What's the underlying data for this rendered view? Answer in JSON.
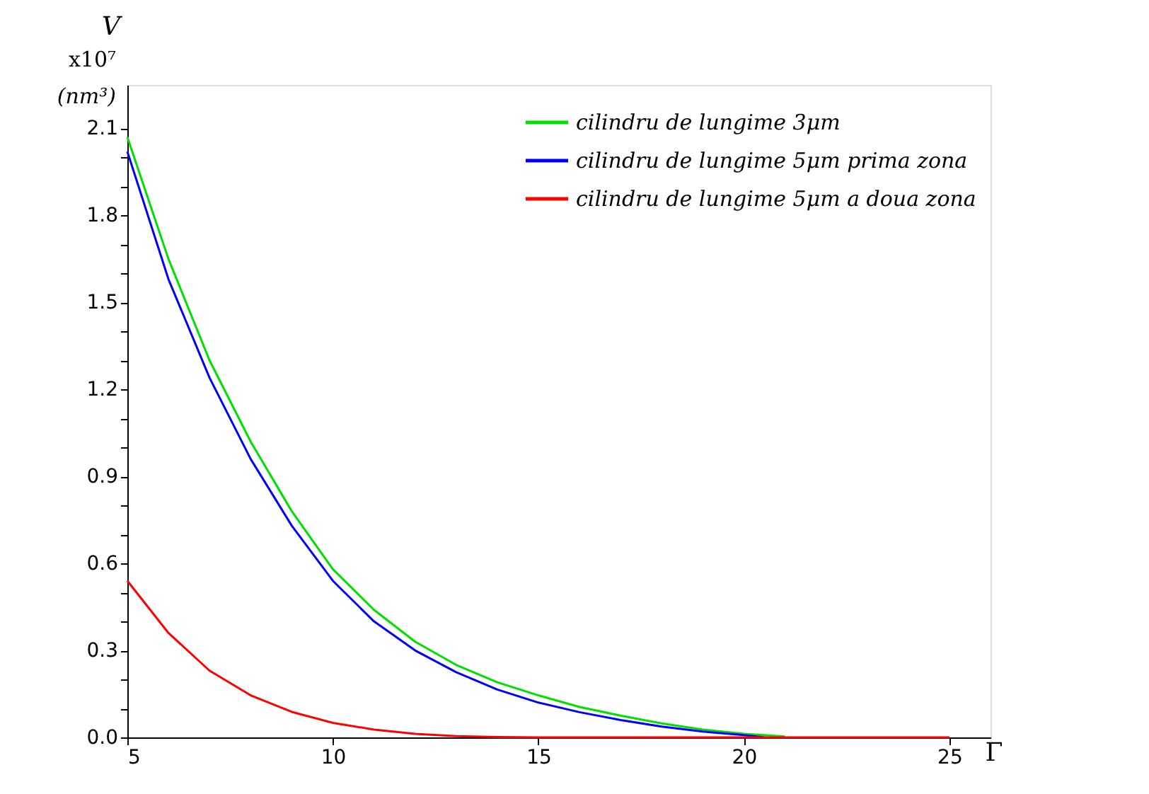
{
  "chart_data": {
    "type": "line",
    "xlabel": "Γ",
    "ylabel": "V",
    "annotations": [
      "x10⁷",
      "(nm³)"
    ],
    "xlim": [
      5,
      26
    ],
    "xticks": [
      5,
      10,
      15,
      20,
      25
    ],
    "ylim": [
      0,
      2.25
    ],
    "yticks": [
      {
        "value": 0,
        "label": "0.0"
      },
      {
        "value": 0.1,
        "label": null
      },
      {
        "value": 0.2,
        "label": null
      },
      0.3,
      {
        "value": 0.4,
        "label": null
      },
      {
        "value": 0.5,
        "label": null
      },
      0.6,
      {
        "value": 0.7,
        "label": null
      },
      {
        "value": 0.8,
        "label": null
      },
      0.9,
      {
        "value": 1,
        "label": null
      },
      {
        "value": 1.1,
        "label": null
      },
      1.2,
      {
        "value": 1.3,
        "label": null
      },
      {
        "value": 1.4,
        "label": null
      },
      1.5,
      {
        "value": 1.6,
        "label": null
      },
      {
        "value": 1.7,
        "label": null
      },
      1.8,
      {
        "value": 1.9,
        "label": null
      },
      {
        "value": 2,
        "label": null
      },
      2.1
    ],
    "grid": false,
    "legend": "top right",
    "marker": "none",
    "line_style": "solid",
    "series": [
      {
        "name": "cilindru de lungime 3μm",
        "color": "#00e000",
        "x": [
          5,
          6,
          7,
          8,
          9,
          10,
          11,
          12,
          13,
          14,
          15,
          16,
          17,
          18,
          19,
          20,
          21
        ],
        "values": [
          2.07,
          1.65,
          1.3,
          1.02,
          0.78,
          0.58,
          0.44,
          0.33,
          0.25,
          0.19,
          0.145,
          0.105,
          0.075,
          0.048,
          0.027,
          0.012,
          0.003
        ]
      },
      {
        "name": "cilindru de lungime 5μm prima zona",
        "color": "#0000ff",
        "x": [
          5,
          6,
          7,
          8,
          9,
          10,
          11,
          12,
          13,
          14,
          15,
          16,
          17,
          18,
          19,
          20,
          20.5
        ],
        "values": [
          2.02,
          1.58,
          1.24,
          0.96,
          0.73,
          0.54,
          0.4,
          0.3,
          0.225,
          0.165,
          0.12,
          0.087,
          0.06,
          0.037,
          0.02,
          0.008,
          0
        ]
      },
      {
        "name": "cilindru de lungime 5μm a doua zona",
        "color": "#ff0000",
        "x": [
          5,
          6,
          7,
          8,
          9,
          10,
          11,
          12,
          13,
          14,
          15,
          25
        ],
        "values": [
          0.54,
          0.36,
          0.23,
          0.145,
          0.088,
          0.05,
          0.027,
          0.012,
          0.004,
          0.001,
          0,
          0
        ]
      }
    ]
  }
}
